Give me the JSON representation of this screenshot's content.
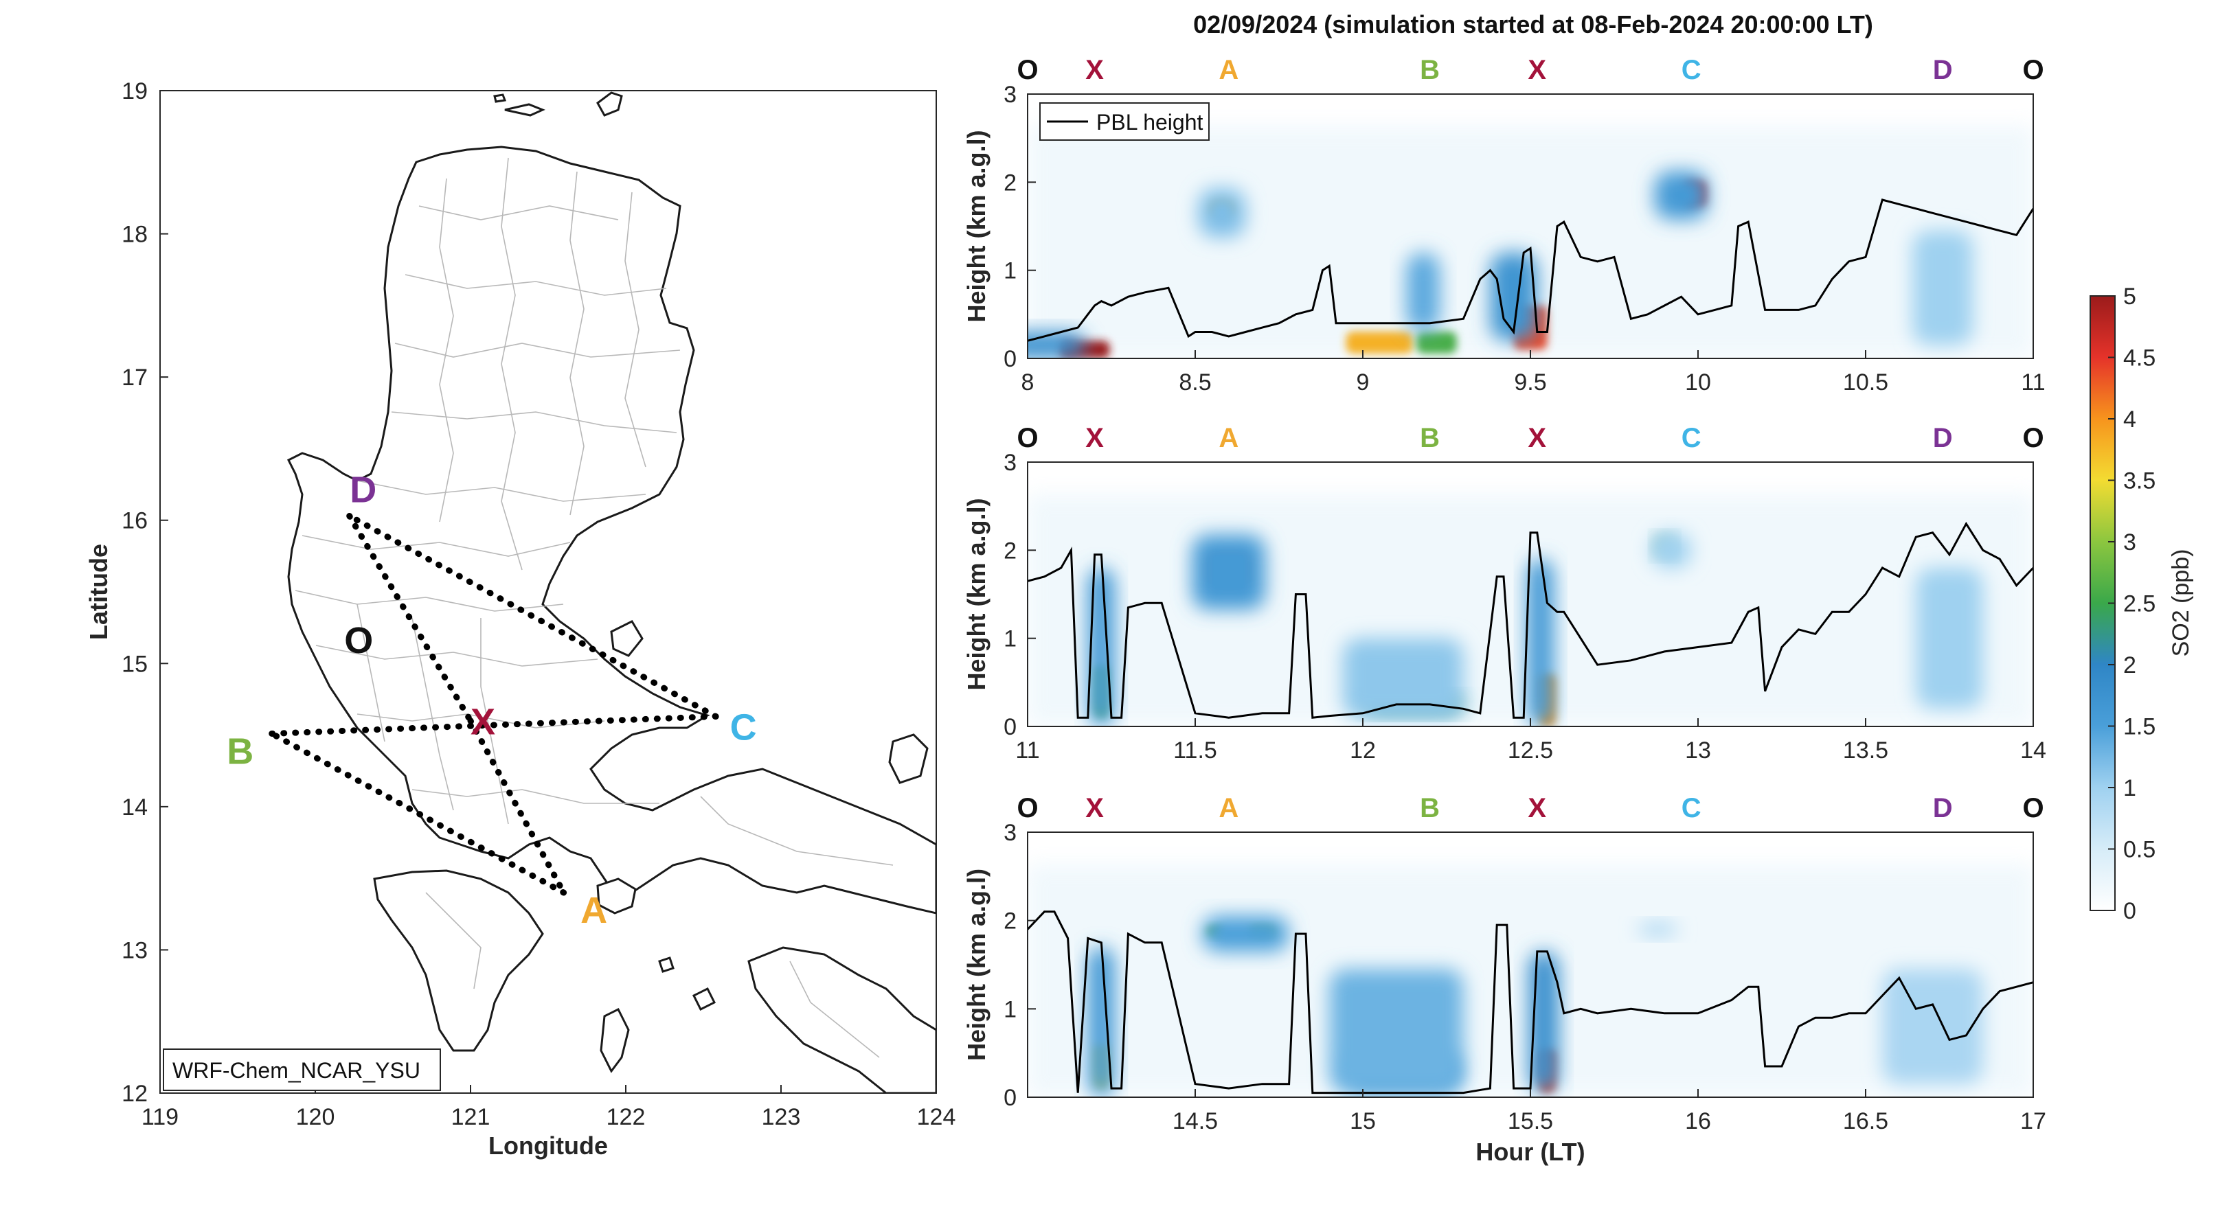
{
  "title": "02/09/2024 (simulation started at 08-Feb-2024 20:00:00 LT)",
  "map": {
    "xlabel": "Longitude",
    "ylabel": "Latitude",
    "xlim": [
      119,
      124
    ],
    "ylim": [
      12,
      19
    ],
    "xticks": [
      "119",
      "120",
      "121",
      "122",
      "123",
      "124"
    ],
    "yticks": [
      "12",
      "13",
      "14",
      "15",
      "16",
      "17",
      "18",
      "19"
    ],
    "model_label": "WRF-Chem_NCAR_YSU",
    "points": [
      {
        "label": "O",
        "lon": 120.28,
        "lat": 15.17,
        "color": "#111111"
      },
      {
        "label": "X",
        "lon": 121.0,
        "lat": 14.6,
        "color": "#a3123a"
      },
      {
        "label": "A",
        "lon": 121.6,
        "lat": 13.4,
        "color": "#f0a830"
      },
      {
        "label": "B",
        "lon": 119.72,
        "lat": 14.51,
        "color": "#7cb342"
      },
      {
        "label": "C",
        "lon": 122.58,
        "lat": 14.63,
        "color": "#3fb4e6"
      },
      {
        "label": "D",
        "lon": 120.22,
        "lat": 16.03,
        "color": "#7b3294"
      }
    ],
    "route": [
      [
        "D",
        "X"
      ],
      [
        "X",
        "A"
      ],
      [
        "A",
        "B"
      ],
      [
        "B",
        "C"
      ],
      [
        "C",
        "D"
      ]
    ]
  },
  "colorbar": {
    "label": "SO2 (ppb)",
    "ticks": [
      "0",
      "0.5",
      "1",
      "1.5",
      "2",
      "2.5",
      "3",
      "3.5",
      "4",
      "4.5",
      "5"
    ],
    "range": [
      0,
      5
    ],
    "colors": [
      "#ffffff",
      "#d6ecf8",
      "#9fd1f0",
      "#4a9fd9",
      "#2f86c6",
      "#3aa84a",
      "#8cc63f",
      "#f3dc32",
      "#f7941d",
      "#e5332a",
      "#9b1b1b"
    ]
  },
  "chart_data": [
    {
      "type": "heatmap",
      "title": "",
      "xlabel": "",
      "ylabel": "Height (km a.g.l)",
      "xlim": [
        8,
        11
      ],
      "ylim": [
        0,
        3
      ],
      "xticks": [
        "8",
        "8.5",
        "9",
        "9.5",
        "10",
        "10.5",
        "11"
      ],
      "yticks": [
        "0",
        "1",
        "2",
        "3"
      ],
      "legend": "PBL height",
      "legend_position": "top-left",
      "route_labels": [
        {
          "label": "O",
          "x": 8.0,
          "color": "#111111"
        },
        {
          "label": "X",
          "x": 8.2,
          "color": "#a3123a"
        },
        {
          "label": "A",
          "x": 8.6,
          "color": "#f0a830"
        },
        {
          "label": "B",
          "x": 9.2,
          "color": "#7cb342"
        },
        {
          "label": "X",
          "x": 9.52,
          "color": "#a3123a"
        },
        {
          "label": "C",
          "x": 9.98,
          "color": "#3fb4e6"
        },
        {
          "label": "D",
          "x": 10.73,
          "color": "#7b3294"
        },
        {
          "label": "O",
          "x": 11.0,
          "color": "#111111"
        }
      ],
      "pbl_height": {
        "x": [
          8.0,
          8.05,
          8.1,
          8.15,
          8.18,
          8.2,
          8.22,
          8.25,
          8.3,
          8.35,
          8.42,
          8.48,
          8.5,
          8.55,
          8.6,
          8.65,
          8.7,
          8.75,
          8.8,
          8.85,
          8.88,
          8.9,
          8.92,
          9.0,
          9.1,
          9.2,
          9.3,
          9.35,
          9.38,
          9.4,
          9.42,
          9.45,
          9.48,
          9.5,
          9.52,
          9.55,
          9.58,
          9.6,
          9.65,
          9.7,
          9.75,
          9.8,
          9.85,
          9.9,
          9.95,
          10.0,
          10.05,
          10.1,
          10.12,
          10.15,
          10.2,
          10.3,
          10.35,
          10.4,
          10.45,
          10.5,
          10.55,
          10.6,
          10.65,
          10.7,
          10.75,
          10.8,
          10.85,
          10.9,
          10.95,
          11.0
        ],
        "y": [
          0.2,
          0.25,
          0.3,
          0.35,
          0.5,
          0.6,
          0.65,
          0.6,
          0.7,
          0.75,
          0.8,
          0.25,
          0.3,
          0.3,
          0.25,
          0.3,
          0.35,
          0.4,
          0.5,
          0.55,
          1.0,
          1.05,
          0.4,
          0.4,
          0.4,
          0.4,
          0.45,
          0.9,
          1.0,
          0.9,
          0.45,
          0.3,
          1.2,
          1.25,
          0.3,
          0.3,
          1.5,
          1.55,
          1.15,
          1.1,
          1.15,
          0.45,
          0.5,
          0.6,
          0.7,
          0.5,
          0.55,
          0.6,
          1.5,
          1.55,
          0.55,
          0.55,
          0.6,
          0.9,
          1.1,
          1.15,
          1.8,
          1.75,
          1.7,
          1.65,
          1.6,
          1.55,
          1.5,
          1.45,
          1.4,
          1.7
        ]
      },
      "so2_blobs": [
        {
          "x": 8.17,
          "y": 0.1,
          "w": 0.15,
          "h": 0.2,
          "value": 5
        },
        {
          "x": 8.05,
          "y": 0.15,
          "w": 0.25,
          "h": 0.3,
          "value": 1.8
        },
        {
          "x": 8.58,
          "y": 1.7,
          "w": 0.07,
          "h": 0.18,
          "value": 3.8
        },
        {
          "x": 8.58,
          "y": 1.65,
          "w": 0.14,
          "h": 0.55,
          "value": 1.2
        },
        {
          "x": 9.05,
          "y": 0.18,
          "w": 0.2,
          "h": 0.25,
          "value": 3.8
        },
        {
          "x": 9.22,
          "y": 0.18,
          "w": 0.12,
          "h": 0.25,
          "value": 2.6
        },
        {
          "x": 9.18,
          "y": 0.75,
          "w": 0.1,
          "h": 0.9,
          "value": 1.4
        },
        {
          "x": 9.5,
          "y": 0.35,
          "w": 0.1,
          "h": 0.5,
          "value": 4.4
        },
        {
          "x": 9.45,
          "y": 0.7,
          "w": 0.14,
          "h": 1.0,
          "value": 1.7
        },
        {
          "x": 9.99,
          "y": 1.87,
          "w": 0.07,
          "h": 0.3,
          "value": 4.6
        },
        {
          "x": 9.95,
          "y": 1.85,
          "w": 0.16,
          "h": 0.55,
          "value": 1.6
        },
        {
          "x": 10.73,
          "y": 0.8,
          "w": 0.18,
          "h": 1.3,
          "value": 1.0
        }
      ]
    },
    {
      "type": "heatmap",
      "title": "",
      "xlabel": "",
      "ylabel": "Height (km a.g.l)",
      "xlim": [
        11,
        14
      ],
      "ylim": [
        0,
        3
      ],
      "xticks": [
        "11",
        "11.5",
        "12",
        "12.5",
        "13",
        "13.5",
        "14"
      ],
      "yticks": [
        "0",
        "1",
        "2",
        "3"
      ],
      "route_labels": [
        {
          "label": "O",
          "x": 11.0,
          "color": "#111111"
        },
        {
          "label": "X",
          "x": 11.2,
          "color": "#a3123a"
        },
        {
          "label": "A",
          "x": 11.6,
          "color": "#f0a830"
        },
        {
          "label": "B",
          "x": 12.2,
          "color": "#7cb342"
        },
        {
          "label": "X",
          "x": 12.52,
          "color": "#a3123a"
        },
        {
          "label": "C",
          "x": 12.98,
          "color": "#3fb4e6"
        },
        {
          "label": "D",
          "x": 13.73,
          "color": "#7b3294"
        },
        {
          "label": "O",
          "x": 14.0,
          "color": "#111111"
        }
      ],
      "pbl_height": {
        "x": [
          11.0,
          11.05,
          11.1,
          11.13,
          11.15,
          11.18,
          11.2,
          11.22,
          11.25,
          11.28,
          11.3,
          11.35,
          11.4,
          11.5,
          11.6,
          11.7,
          11.78,
          11.8,
          11.83,
          11.85,
          11.9,
          12.0,
          12.1,
          12.2,
          12.3,
          12.35,
          12.4,
          12.42,
          12.45,
          12.48,
          12.5,
          12.52,
          12.55,
          12.58,
          12.6,
          12.65,
          12.7,
          12.8,
          12.9,
          13.0,
          13.1,
          13.15,
          13.18,
          13.2,
          13.25,
          13.3,
          13.35,
          13.4,
          13.45,
          13.5,
          13.55,
          13.6,
          13.65,
          13.7,
          13.75,
          13.8,
          13.85,
          13.9,
          13.95,
          14.0
        ],
        "y": [
          1.65,
          1.7,
          1.8,
          2.0,
          0.1,
          0.1,
          1.95,
          1.95,
          0.1,
          0.1,
          1.35,
          1.4,
          1.4,
          0.15,
          0.1,
          0.15,
          0.15,
          1.5,
          1.5,
          0.1,
          0.12,
          0.15,
          0.25,
          0.25,
          0.2,
          0.15,
          1.7,
          1.7,
          0.1,
          0.1,
          2.2,
          2.2,
          1.4,
          1.3,
          1.3,
          1.0,
          0.7,
          0.75,
          0.85,
          0.9,
          0.95,
          1.3,
          1.35,
          0.4,
          0.9,
          1.1,
          1.05,
          1.3,
          1.3,
          1.5,
          1.8,
          1.7,
          2.15,
          2.2,
          1.95,
          2.3,
          2.0,
          1.9,
          1.6,
          1.8
        ]
      },
      "so2_blobs": [
        {
          "x": 11.22,
          "y": 0.4,
          "w": 0.04,
          "h": 0.6,
          "value": 2.8
        },
        {
          "x": 11.22,
          "y": 0.9,
          "w": 0.08,
          "h": 1.8,
          "value": 1.6
        },
        {
          "x": 11.6,
          "y": 1.78,
          "w": 0.12,
          "h": 0.35,
          "value": 4.4
        },
        {
          "x": 11.6,
          "y": 1.75,
          "w": 0.22,
          "h": 0.85,
          "value": 1.6
        },
        {
          "x": 12.15,
          "y": 0.25,
          "w": 0.3,
          "h": 0.2,
          "value": 2.2
        },
        {
          "x": 12.12,
          "y": 0.55,
          "w": 0.36,
          "h": 0.9,
          "value": 1.1
        },
        {
          "x": 12.55,
          "y": 0.3,
          "w": 0.05,
          "h": 0.6,
          "value": 4.0
        },
        {
          "x": 12.53,
          "y": 0.95,
          "w": 0.08,
          "h": 1.9,
          "value": 1.6
        },
        {
          "x": 12.9,
          "y": 2.05,
          "w": 0.05,
          "h": 0.2,
          "value": 2.2
        },
        {
          "x": 12.92,
          "y": 2.0,
          "w": 0.12,
          "h": 0.4,
          "value": 1.0
        },
        {
          "x": 13.75,
          "y": 1.0,
          "w": 0.2,
          "h": 1.6,
          "value": 1.0
        }
      ]
    },
    {
      "type": "heatmap",
      "title": "",
      "xlabel": "Hour (LT)",
      "ylabel": "Height (km a.g.l)",
      "xlim": [
        14,
        17
      ],
      "ylim": [
        0,
        3
      ],
      "xticks": [
        "14.5",
        "15",
        "15.5",
        "16",
        "16.5",
        "17"
      ],
      "yticks": [
        "0",
        "1",
        "2",
        "3"
      ],
      "route_labels": [
        {
          "label": "O",
          "x": 14.0,
          "color": "#111111"
        },
        {
          "label": "X",
          "x": 14.2,
          "color": "#a3123a"
        },
        {
          "label": "A",
          "x": 14.6,
          "color": "#f0a830"
        },
        {
          "label": "B",
          "x": 15.2,
          "color": "#7cb342"
        },
        {
          "label": "X",
          "x": 15.52,
          "color": "#a3123a"
        },
        {
          "label": "C",
          "x": 15.98,
          "color": "#3fb4e6"
        },
        {
          "label": "D",
          "x": 16.73,
          "color": "#7b3294"
        },
        {
          "label": "O",
          "x": 17.0,
          "color": "#111111"
        }
      ],
      "pbl_height": {
        "x": [
          14.0,
          14.05,
          14.08,
          14.12,
          14.15,
          14.18,
          14.22,
          14.25,
          14.28,
          14.3,
          14.35,
          14.4,
          14.5,
          14.6,
          14.7,
          14.78,
          14.8,
          14.83,
          14.85,
          14.9,
          15.0,
          15.1,
          15.2,
          15.3,
          15.38,
          15.4,
          15.43,
          15.45,
          15.5,
          15.52,
          15.55,
          15.58,
          15.6,
          15.65,
          15.7,
          15.8,
          15.9,
          16.0,
          16.1,
          16.15,
          16.18,
          16.2,
          16.25,
          16.3,
          16.35,
          16.4,
          16.45,
          16.5,
          16.55,
          16.6,
          16.65,
          16.7,
          16.75,
          16.8,
          16.85,
          16.9,
          16.95,
          17.0
        ],
        "y": [
          1.9,
          2.1,
          2.1,
          1.8,
          0.05,
          1.8,
          1.75,
          0.1,
          0.1,
          1.85,
          1.75,
          1.75,
          0.15,
          0.1,
          0.15,
          0.15,
          1.85,
          1.85,
          0.05,
          0.05,
          0.05,
          0.05,
          0.05,
          0.05,
          0.1,
          1.95,
          1.95,
          0.1,
          0.1,
          1.65,
          1.65,
          1.3,
          0.95,
          1.0,
          0.95,
          1.0,
          0.95,
          0.95,
          1.1,
          1.25,
          1.25,
          0.35,
          0.35,
          0.8,
          0.9,
          0.9,
          0.95,
          0.95,
          1.15,
          1.35,
          1.0,
          1.05,
          0.65,
          0.7,
          1.0,
          1.2,
          1.25,
          1.3
        ]
      },
      "so2_blobs": [
        {
          "x": 14.22,
          "y": 0.35,
          "w": 0.04,
          "h": 0.5,
          "value": 3.5
        },
        {
          "x": 14.22,
          "y": 0.85,
          "w": 0.08,
          "h": 1.7,
          "value": 1.6
        },
        {
          "x": 14.56,
          "y": 1.88,
          "w": 0.05,
          "h": 0.12,
          "value": 2.8
        },
        {
          "x": 14.7,
          "y": 1.88,
          "w": 0.08,
          "h": 0.12,
          "value": 3.0
        },
        {
          "x": 14.65,
          "y": 1.85,
          "w": 0.26,
          "h": 0.4,
          "value": 1.5
        },
        {
          "x": 15.12,
          "y": 0.3,
          "w": 0.34,
          "h": 0.45,
          "value": 1.6
        },
        {
          "x": 15.1,
          "y": 0.75,
          "w": 0.4,
          "h": 1.4,
          "value": 1.3
        },
        {
          "x": 15.55,
          "y": 0.3,
          "w": 0.05,
          "h": 0.5,
          "value": 4.4
        },
        {
          "x": 15.54,
          "y": 0.85,
          "w": 0.09,
          "h": 1.6,
          "value": 1.8
        },
        {
          "x": 15.88,
          "y": 1.9,
          "w": 0.12,
          "h": 0.15,
          "value": 0.9
        },
        {
          "x": 16.7,
          "y": 0.8,
          "w": 0.3,
          "h": 1.3,
          "value": 0.9
        }
      ]
    }
  ]
}
